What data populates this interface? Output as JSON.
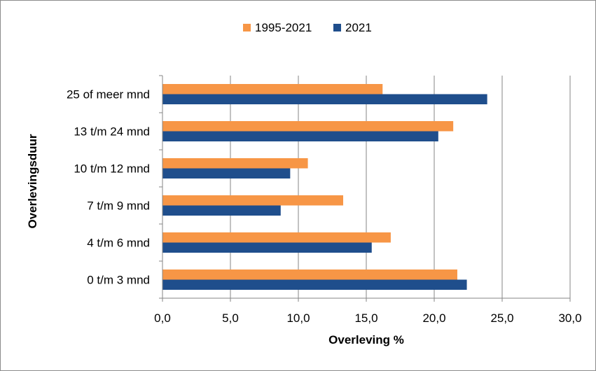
{
  "chart_data": {
    "type": "bar",
    "orientation": "horizontal",
    "categories": [
      "0 t/m 3 mnd",
      "4 t/m 6 mnd",
      "7 t/m 9 mnd",
      "10 t/m 12 mnd",
      "13 t/m 24 mnd",
      "25 of meer mnd"
    ],
    "series": [
      {
        "name": "1995-2021",
        "color": "#f79646",
        "values": [
          21.7,
          16.8,
          13.3,
          10.7,
          21.4,
          16.2
        ]
      },
      {
        "name": "2021",
        "color": "#1f4e8c",
        "values": [
          22.4,
          15.4,
          8.7,
          9.4,
          20.3,
          23.9
        ]
      }
    ],
    "xlabel": "Overleving %",
    "ylabel": "Overlevingsduur",
    "xlim": [
      0,
      30
    ],
    "xticks": [
      0,
      5,
      10,
      15,
      20,
      25,
      30
    ],
    "xtick_labels": [
      "0,0",
      "5,0",
      "10,0",
      "15,0",
      "20,0",
      "25,0",
      "30,0"
    ],
    "grid": "vertical",
    "legend_position": "top"
  }
}
